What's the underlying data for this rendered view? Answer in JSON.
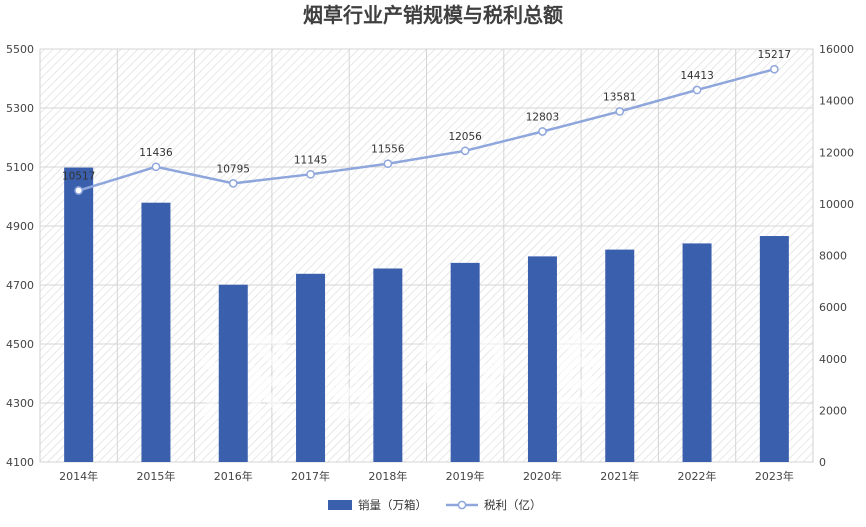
{
  "chart_data": {
    "type": "bar+line",
    "title": "烟草行业产销规模与税利总额",
    "categories": [
      "2014年",
      "2015年",
      "2016年",
      "2017年",
      "2018年",
      "2019年",
      "2020年",
      "2021年",
      "2022年",
      "2023年"
    ],
    "series": [
      {
        "name": "销量（万箱）",
        "type": "bar",
        "axis": "left",
        "color": "#3a5fad",
        "values": [
          5098,
          4979,
          4701,
          4738,
          4756,
          4775,
          4797,
          4820,
          4841,
          4866
        ]
      },
      {
        "name": "税利（亿）",
        "type": "line",
        "axis": "right",
        "color": "#8ea6dc",
        "values": [
          10517,
          11436,
          10795,
          11145,
          11556,
          12056,
          12803,
          13581,
          14413,
          15217
        ],
        "data_labels": [
          "10517",
          "11436",
          "10795",
          "11145",
          "11556",
          "12056",
          "12803",
          "13581",
          "14413",
          "15217"
        ]
      }
    ],
    "y_left": {
      "min": 4100,
      "max": 5500,
      "ticks": [
        "4100",
        "4300",
        "4500",
        "4700",
        "4900",
        "5100",
        "5300",
        "5500"
      ]
    },
    "y_right": {
      "min": 0,
      "max": 16000,
      "ticks": [
        "0",
        "2000",
        "4000",
        "6000",
        "8000",
        "10000",
        "12000",
        "14000",
        "16000"
      ]
    },
    "grid": true,
    "legend_position": "bottom",
    "watermark": "深蓝智库"
  }
}
